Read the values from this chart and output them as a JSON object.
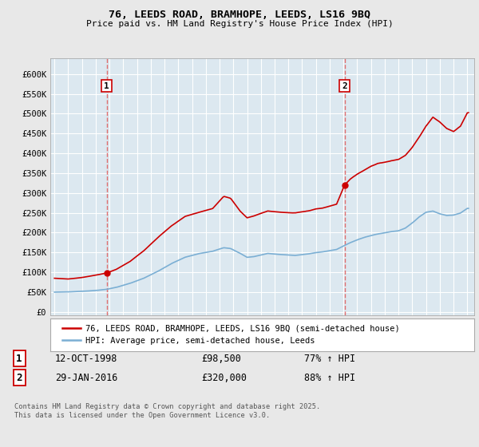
{
  "title1": "76, LEEDS ROAD, BRAMHOPE, LEEDS, LS16 9BQ",
  "title2": "Price paid vs. HM Land Registry's House Price Index (HPI)",
  "yticks": [
    0,
    50000,
    100000,
    150000,
    200000,
    250000,
    300000,
    350000,
    400000,
    450000,
    500000,
    550000,
    600000
  ],
  "ylim": [
    -8000,
    640000
  ],
  "xlim_start": 1994.7,
  "xlim_end": 2025.5,
  "bg_color": "#e8e8e8",
  "plot_bg_color": "#dce8f0",
  "grid_color": "#ffffff",
  "red_line_color": "#cc0000",
  "blue_line_color": "#7bafd4",
  "vline_color": "#e06060",
  "sale1_x": 1998.79,
  "sale1_y": 98500,
  "sale2_x": 2016.08,
  "sale2_y": 320000,
  "legend_label1": "76, LEEDS ROAD, BRAMHOPE, LEEDS, LS16 9BQ (semi-detached house)",
  "legend_label2": "HPI: Average price, semi-detached house, Leeds",
  "annot1_date": "12-OCT-1998",
  "annot1_price": "£98,500",
  "annot1_hpi": "77% ↑ HPI",
  "annot2_date": "29-JAN-2016",
  "annot2_price": "£320,000",
  "annot2_hpi": "88% ↑ HPI",
  "footer": "Contains HM Land Registry data © Crown copyright and database right 2025.\nThis data is licensed under the Open Government Licence v3.0."
}
